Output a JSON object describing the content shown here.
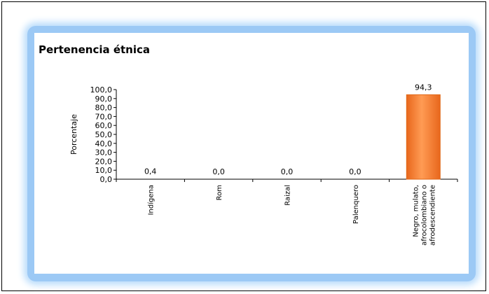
{
  "chart_data": {
    "type": "bar",
    "title": "Pertenencia étnica",
    "ylabel": "Porcentaje",
    "xlabel": "",
    "ylim": [
      0,
      100
    ],
    "yticks": [
      "0,0",
      "10,0",
      "20,0",
      "30,0",
      "40,0",
      "50,0",
      "60,0",
      "70,0",
      "80,0",
      "90,0",
      "100,0"
    ],
    "categories": [
      [
        "Indígena"
      ],
      [
        "Rom"
      ],
      [
        "Raizal"
      ],
      [
        "Palenquero"
      ],
      [
        "Negro, mulato,",
        "afrocolombiano o",
        "afrodescendiente"
      ]
    ],
    "values": [
      0.4,
      0.0,
      0.0,
      0.0,
      94.3
    ],
    "value_labels": [
      "0,4",
      "0,0",
      "0,0",
      "0,0",
      "94,3"
    ],
    "bar_color": "#f28a3c",
    "bar_edge_color": "#e06a1a"
  }
}
